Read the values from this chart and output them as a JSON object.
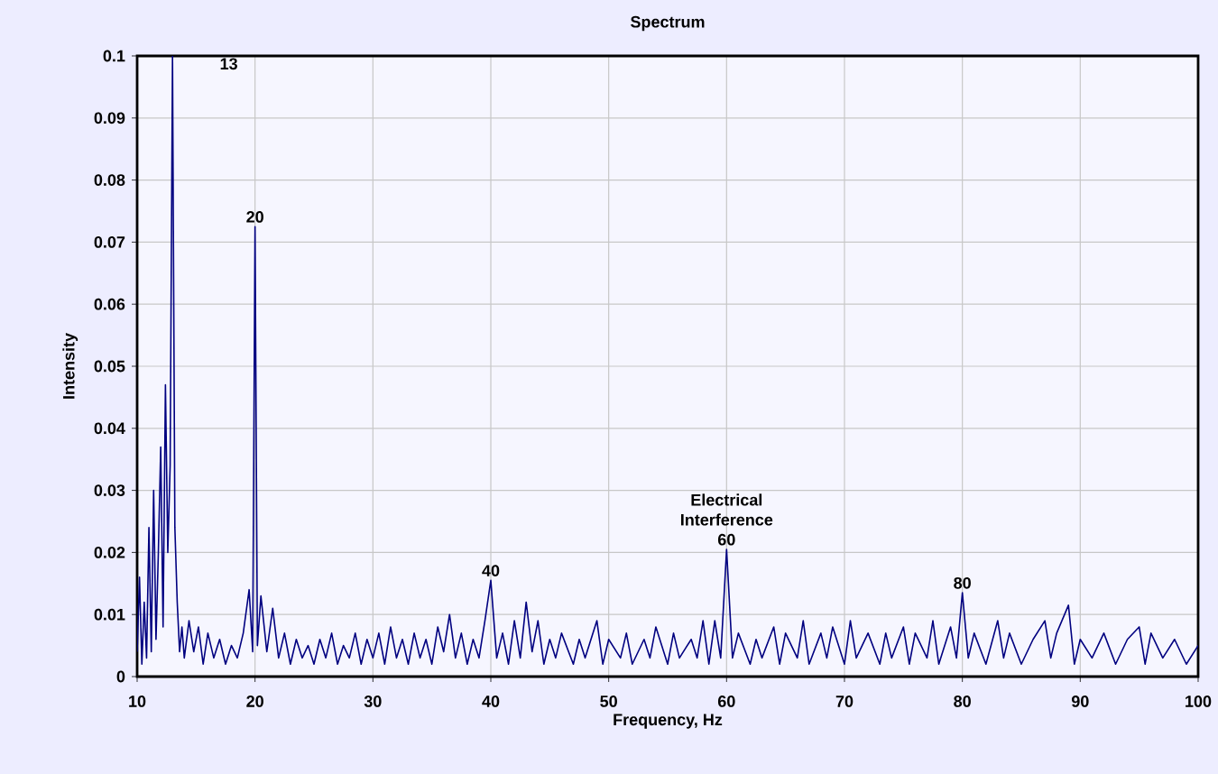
{
  "chart_data": {
    "type": "line",
    "title": "Spectrum",
    "xlabel": "Frequency, Hz",
    "ylabel": "Intensity",
    "xlim": [
      10,
      100
    ],
    "xticks": [
      10,
      20,
      30,
      40,
      50,
      60,
      70,
      80,
      90,
      100
    ],
    "ylim": [
      0,
      0.1
    ],
    "yticks": [
      0,
      0.01,
      0.02,
      0.03,
      0.04,
      0.05,
      0.06,
      0.07,
      0.08,
      0.09,
      0.1
    ],
    "grid": true,
    "annotations": [
      {
        "text": "13",
        "x": 13,
        "y": 0.1
      },
      {
        "text": "20",
        "x": 20,
        "y": 0.0725
      },
      {
        "text": "40",
        "x": 40,
        "y": 0.0155
      },
      {
        "text": "Electrical Interference 60",
        "x": 60,
        "y": 0.0205
      },
      {
        "text": "80",
        "x": 80,
        "y": 0.0135
      }
    ],
    "series": [
      {
        "color": "#000080",
        "x": [
          10,
          10.2,
          10.4,
          10.6,
          10.8,
          11,
          11.2,
          11.4,
          11.6,
          11.8,
          12,
          12.2,
          12.4,
          12.6,
          12.8,
          13,
          13.2,
          13.4,
          13.6,
          13.8,
          14,
          14.4,
          14.8,
          15.2,
          15.6,
          16,
          16.5,
          17,
          17.5,
          18,
          18.5,
          19,
          19.5,
          19.8,
          20,
          20.2,
          20.5,
          21,
          21.5,
          22,
          22.5,
          23,
          23.5,
          24,
          24.5,
          25,
          25.5,
          26,
          26.5,
          27,
          27.5,
          28,
          28.5,
          29,
          29.5,
          30,
          30.5,
          31,
          31.5,
          32,
          32.5,
          33,
          33.5,
          34,
          34.5,
          35,
          35.5,
          36,
          36.5,
          37,
          37.5,
          38,
          38.5,
          39,
          39.5,
          40,
          40.5,
          41,
          41.5,
          42,
          42.5,
          43,
          43.5,
          44,
          44.5,
          45,
          45.5,
          46,
          47,
          47.5,
          48,
          49,
          49.5,
          50,
          51,
          51.5,
          52,
          53,
          53.5,
          54,
          55,
          55.5,
          56,
          57,
          57.5,
          58,
          58.5,
          59,
          59.5,
          60,
          60.5,
          61,
          62,
          62.5,
          63,
          64,
          64.5,
          65,
          66,
          66.5,
          67,
          68,
          68.5,
          69,
          70,
          70.5,
          71,
          72,
          73,
          73.5,
          74,
          75,
          75.5,
          76,
          77,
          77.5,
          78,
          79,
          79.5,
          80,
          80.5,
          81,
          82,
          83,
          83.5,
          84,
          85,
          86,
          87,
          87.5,
          88,
          89,
          89.5,
          90,
          91,
          92,
          93,
          94,
          95,
          95.5,
          96,
          97,
          98,
          99,
          100
        ],
        "values": [
          0.004,
          0.016,
          0.002,
          0.012,
          0.003,
          0.024,
          0.004,
          0.03,
          0.006,
          0.02,
          0.037,
          0.008,
          0.047,
          0.02,
          0.034,
          0.1,
          0.024,
          0.012,
          0.004,
          0.008,
          0.003,
          0.009,
          0.004,
          0.008,
          0.002,
          0.007,
          0.003,
          0.006,
          0.002,
          0.005,
          0.003,
          0.007,
          0.014,
          0.004,
          0.0725,
          0.005,
          0.013,
          0.004,
          0.011,
          0.003,
          0.007,
          0.002,
          0.006,
          0.003,
          0.005,
          0.002,
          0.006,
          0.003,
          0.007,
          0.002,
          0.005,
          0.003,
          0.007,
          0.002,
          0.006,
          0.003,
          0.007,
          0.002,
          0.008,
          0.003,
          0.006,
          0.002,
          0.007,
          0.003,
          0.006,
          0.002,
          0.008,
          0.004,
          0.01,
          0.003,
          0.007,
          0.002,
          0.006,
          0.003,
          0.009,
          0.0155,
          0.003,
          0.007,
          0.002,
          0.009,
          0.003,
          0.012,
          0.004,
          0.009,
          0.002,
          0.006,
          0.003,
          0.007,
          0.002,
          0.006,
          0.003,
          0.009,
          0.002,
          0.006,
          0.003,
          0.007,
          0.002,
          0.006,
          0.003,
          0.008,
          0.002,
          0.007,
          0.003,
          0.006,
          0.003,
          0.009,
          0.002,
          0.009,
          0.003,
          0.0205,
          0.003,
          0.007,
          0.002,
          0.006,
          0.003,
          0.008,
          0.002,
          0.007,
          0.003,
          0.009,
          0.002,
          0.007,
          0.003,
          0.008,
          0.002,
          0.009,
          0.003,
          0.007,
          0.002,
          0.007,
          0.003,
          0.008,
          0.002,
          0.007,
          0.003,
          0.009,
          0.002,
          0.008,
          0.003,
          0.0135,
          0.003,
          0.007,
          0.002,
          0.009,
          0.003,
          0.007,
          0.002,
          0.006,
          0.009,
          0.003,
          0.007,
          0.0115,
          0.002,
          0.006,
          0.003,
          0.007,
          0.002,
          0.006,
          0.008,
          0.002,
          0.007,
          0.003,
          0.006,
          0.002,
          0.005
        ]
      }
    ]
  }
}
